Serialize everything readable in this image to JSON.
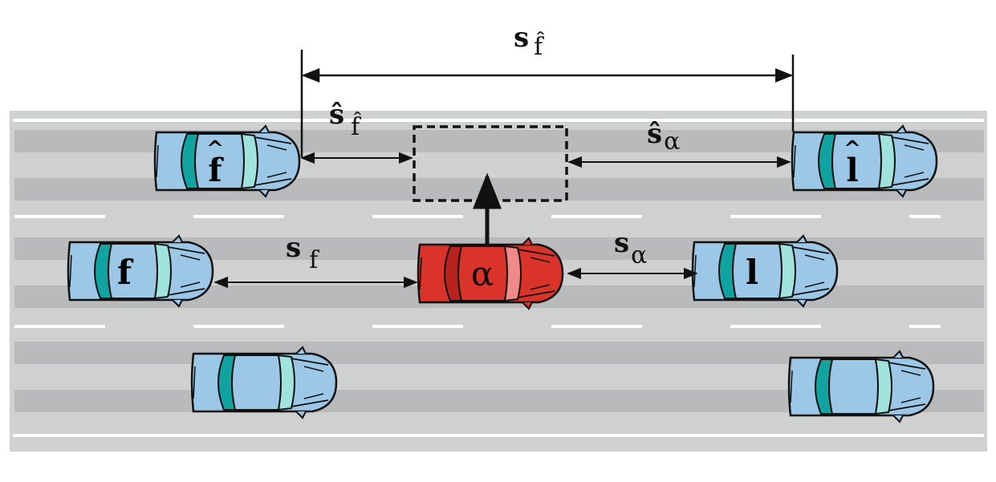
{
  "figure": {
    "title_label": {
      "main": "s",
      "sub": "f̂"
    },
    "gaps": {
      "target_follower": {
        "main": "ŝ",
        "sub": "f̂"
      },
      "target_leader": {
        "main": "ŝ",
        "sub": "α"
      },
      "current_follower": {
        "main": "s",
        "sub": "f"
      },
      "current_leader": {
        "main": "s",
        "sub": "α"
      }
    },
    "cars": {
      "target_follower": "f",
      "target_leader": "l",
      "current_follower": "f",
      "current_leader": "l",
      "ego": "α"
    },
    "colors": {
      "road": "#cfd1d1",
      "lane_band": "#b9babb",
      "marking": "#ffffff",
      "car_blue": "#9dc7e6",
      "car_red": "#d9332a",
      "window_teal": "#10a39f",
      "window_light": "#9fe3dc"
    }
  }
}
